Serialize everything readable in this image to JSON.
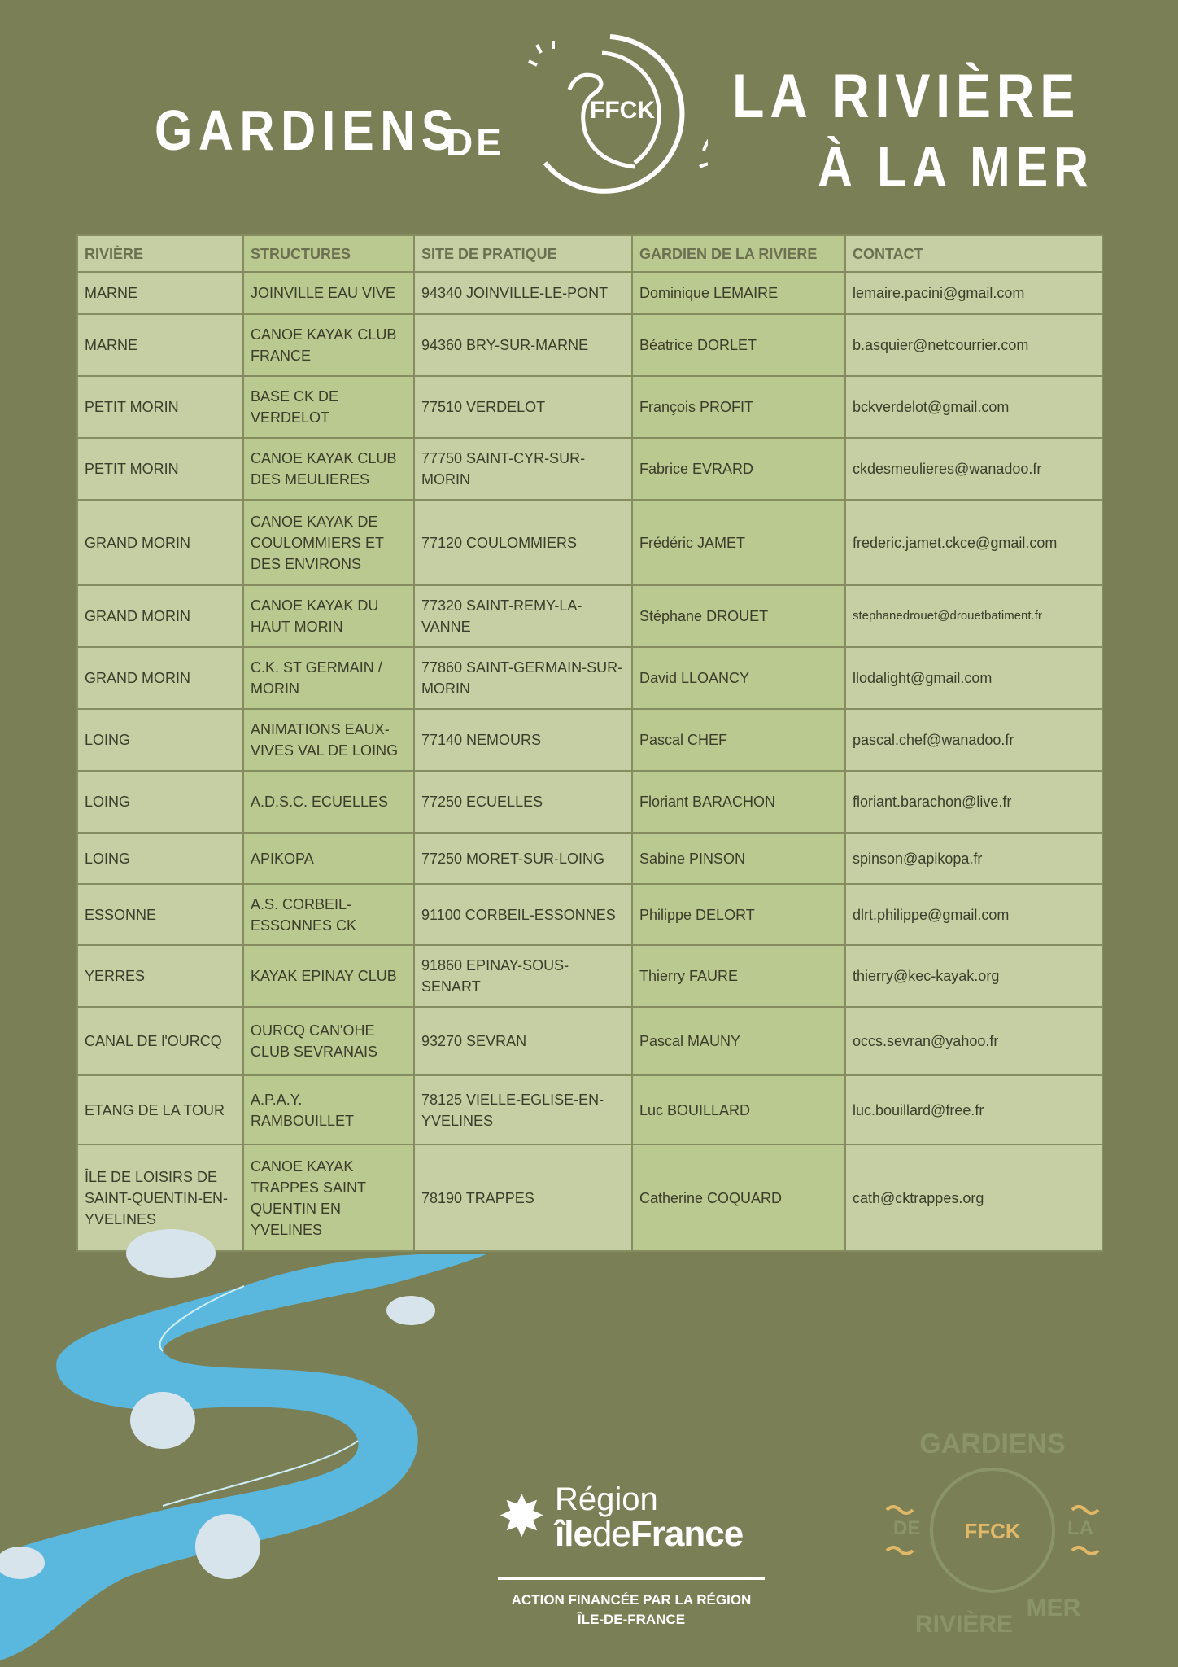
{
  "header": {
    "line1": "GARDIENS",
    "de": "DE",
    "line2": "LA RIVIÈRE",
    "line3": "À LA MER",
    "emblem": "FFCK"
  },
  "table": {
    "columns": [
      "RIVIÈRE",
      "STRUCTURES",
      "SITE DE PRATIQUE",
      "GARDIEN DE LA RIVIERE",
      "CONTACT"
    ],
    "rows": [
      [
        "MARNE",
        "JOINVILLE EAU VIVE",
        "94340 JOINVILLE-LE-PONT",
        "Dominique LEMAIRE",
        "lemaire.pacini@gmail.com"
      ],
      [
        "MARNE",
        "CANOE KAYAK CLUB FRANCE",
        "94360 BRY-SUR-MARNE",
        "Béatrice DORLET",
        "b.asquier@netcourrier.com"
      ],
      [
        "PETIT MORIN",
        "BASE CK DE VERDELOT",
        "77510 VERDELOT",
        "François PROFIT",
        "bckverdelot@gmail.com"
      ],
      [
        "PETIT MORIN",
        "CANOE KAYAK CLUB DES MEULIERES",
        "77750 SAINT-CYR-SUR-MORIN",
        "Fabrice EVRARD",
        "ckdesmeulieres@wanadoo.fr"
      ],
      [
        "GRAND MORIN",
        "CANOE KAYAK DE COULOMMIERS ET DES ENVIRONS",
        "77120 COULOMMIERS",
        "Frédéric JAMET",
        "frederic.jamet.ckce@gmail.com"
      ],
      [
        "GRAND MORIN",
        "CANOE KAYAK DU HAUT MORIN",
        "77320 SAINT-REMY-LA-VANNE",
        "Stéphane DROUET",
        "stephanedrouet@drouetbatiment.fr"
      ],
      [
        "GRAND MORIN",
        "C.K. ST GERMAIN / MORIN",
        "77860 SAINT-GERMAIN-SUR-MORIN",
        "David LLOANCY",
        "llodalight@gmail.com"
      ],
      [
        "LOING",
        "ANIMATIONS EAUX-VIVES VAL DE LOING",
        "77140 NEMOURS",
        "Pascal CHEF",
        "pascal.chef@wanadoo.fr"
      ],
      [
        "LOING",
        "A.D.S.C. ECUELLES",
        "77250 ECUELLES",
        "Floriant BARACHON",
        "floriant.barachon@live.fr"
      ],
      [
        "LOING",
        "APIKOPA",
        "77250 MORET-SUR-LOING",
        "Sabine PINSON",
        "spinson@apikopa.fr"
      ],
      [
        "ESSONNE",
        "A.S. CORBEIL-ESSONNES CK",
        "91100 CORBEIL-ESSONNES",
        "Philippe DELORT",
        "dlrt.philippe@gmail.com"
      ],
      [
        "YERRES",
        "KAYAK EPINAY CLUB",
        "91860 EPINAY-SOUS-SENART",
        "Thierry FAURE",
        "thierry@kec-kayak.org"
      ],
      [
        "CANAL DE l'OURCQ",
        "OURCQ CAN'OHE CLUB SEVRANAIS",
        "93270 SEVRAN",
        "Pascal MAUNY",
        "occs.sevran@yahoo.fr"
      ],
      [
        "ETANG DE LA TOUR",
        "A.P.A.Y. RAMBOUILLET",
        "78125 VIELLE-EGLISE-EN-YVELINES",
        "Luc BOUILLARD",
        "luc.bouillard@free.fr"
      ],
      [
        "ÎLE DE LOISIRS DE SAINT-QUENTIN-EN-YVELINES",
        "CANOE KAYAK TRAPPES SAINT QUENTIN EN YVELINES",
        "78190 TRAPPES",
        "Catherine COQUARD",
        "cath@cktrappes.org"
      ]
    ]
  },
  "footer": {
    "region1": "Région",
    "region2_a": "île",
    "region2_b": "de",
    "region2_c": "France",
    "action1": "ACTION FINANCÉE PAR LA RÉGION",
    "action2": "ÎLE-DE-FRANCE",
    "badge": {
      "top": "GARDIENS",
      "left": "DE",
      "right": "LA",
      "bottom": "RIVIÈRE",
      "bottom2": "MER",
      "center": "FFCK"
    }
  },
  "colors": {
    "background": "#7a7f55",
    "cell": "#c6cfa3",
    "cell_dark": "#bac98f",
    "border": "#848c60",
    "river": "#5ab8de",
    "badge_accent": "#e0b867"
  }
}
